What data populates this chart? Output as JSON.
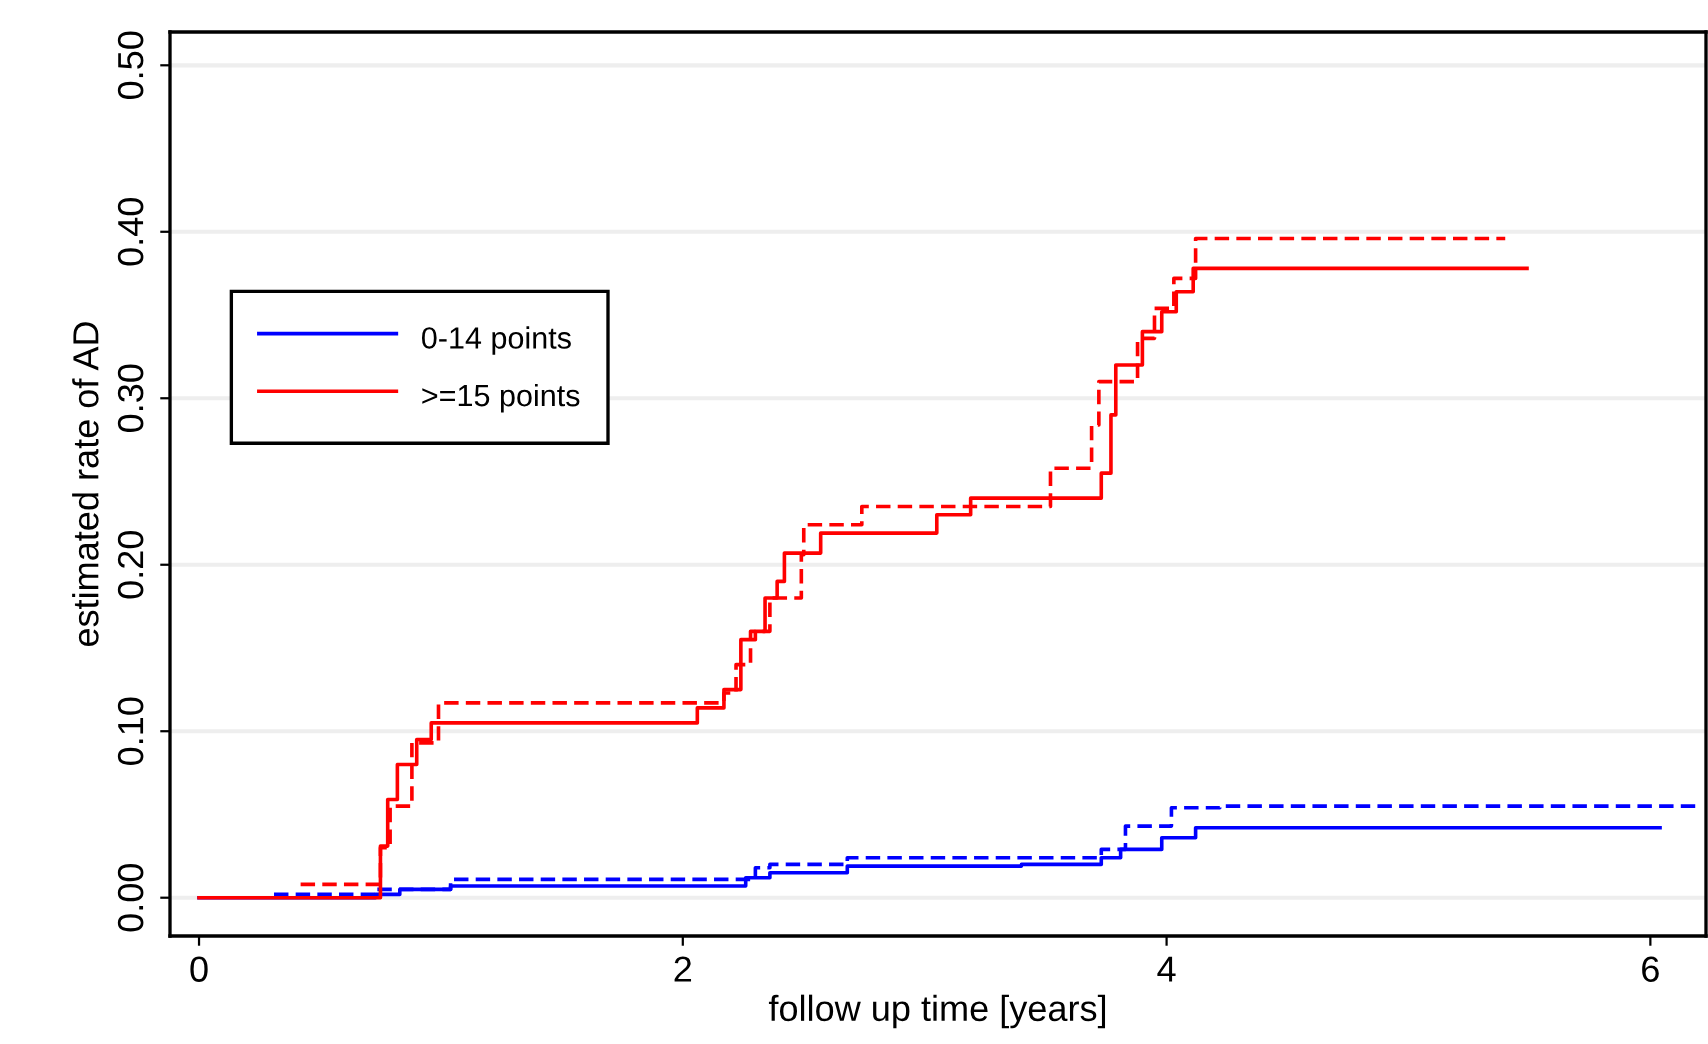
{
  "chart_data": {
    "type": "step",
    "xlabel": "follow up time [years]",
    "ylabel": "estimated rate of AD",
    "xlim": [
      -0.12,
      6.23
    ],
    "ylim": [
      -0.023,
      0.52
    ],
    "xticks": [
      0,
      2,
      4,
      6
    ],
    "yticks": [
      {
        "value": 0,
        "label": "0.00"
      },
      {
        "value": 0.1,
        "label": "0.10"
      },
      {
        "value": 0.2,
        "label": "0.20"
      },
      {
        "value": 0.3,
        "label": "0.30"
      },
      {
        "value": 0.4,
        "label": "0.40"
      },
      {
        "value": 0.5,
        "label": "0.50"
      }
    ],
    "grid": "y",
    "legend": "top left",
    "series": [
      {
        "name": "0-14 points",
        "color": "#0000ff",
        "line_style": "solid",
        "x": [
          0,
          0.73,
          0.83,
          1.04,
          2.26,
          2.36,
          2.68,
          3.4,
          3.73,
          3.81,
          3.98,
          4.12,
          6.04
        ],
        "values": [
          0,
          0.002,
          0.005,
          0.007,
          0.012,
          0.015,
          0.019,
          0.02,
          0.024,
          0.029,
          0.036,
          0.042,
          0.042
        ]
      },
      {
        "color": "#0000ff",
        "line_style": "dashed",
        "x": [
          0.31,
          0.73,
          1.04,
          2.3,
          2.36,
          2.68,
          3.73,
          3.83,
          4.02,
          4.22,
          6.21
        ],
        "values": [
          0.002,
          0.005,
          0.011,
          0.018,
          0.02,
          0.024,
          0.029,
          0.043,
          0.054,
          0.055,
          0.055
        ]
      },
      {
        "name": ">=15 points",
        "color": "#ff0000",
        "line_style": "solid",
        "x": [
          0,
          0.75,
          0.78,
          0.82,
          0.9,
          0.96,
          2.06,
          2.17,
          2.24,
          2.3,
          2.34,
          2.39,
          2.42,
          2.57,
          3.05,
          3.19,
          3.73,
          3.77,
          3.79,
          3.9,
          3.98,
          4.04,
          4.11,
          5.49
        ],
        "values": [
          0,
          0.031,
          0.059,
          0.08,
          0.095,
          0.105,
          0.114,
          0.125,
          0.155,
          0.16,
          0.18,
          0.19,
          0.207,
          0.219,
          0.23,
          0.24,
          0.255,
          0.29,
          0.32,
          0.34,
          0.352,
          0.364,
          0.378,
          0.378
        ]
      },
      {
        "color": "#ff0000",
        "line_style": "dashed",
        "x": [
          0.42,
          0.75,
          0.79,
          0.88,
          0.99,
          2.17,
          2.22,
          2.28,
          2.36,
          2.49,
          2.5,
          2.74,
          3.52,
          3.69,
          3.72,
          3.88,
          3.95,
          4.03,
          4.12,
          5.4
        ],
        "values": [
          0.008,
          0.03,
          0.055,
          0.093,
          0.117,
          0.123,
          0.14,
          0.16,
          0.18,
          0.206,
          0.224,
          0.235,
          0.258,
          0.284,
          0.31,
          0.336,
          0.354,
          0.372,
          0.396,
          0.396
        ]
      }
    ]
  }
}
